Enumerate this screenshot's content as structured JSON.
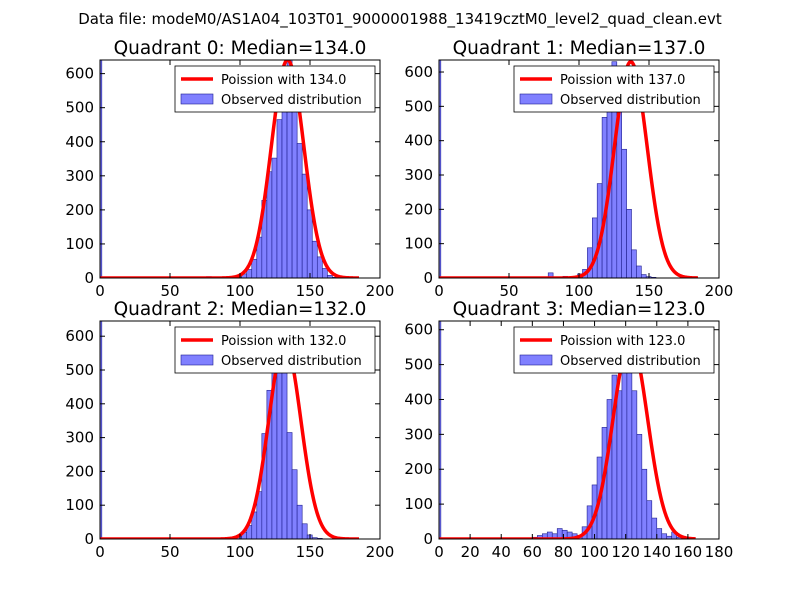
{
  "suptitle": "Data file: modeM0/AS1A04_103T01_9000001988_13419cztM0_level2_quad_clean.evt",
  "colors": {
    "bar_fill": "#8080ff",
    "bar_edge": "#1f1f8f",
    "curve": "#ff0000"
  },
  "chart_data": [
    {
      "type": "bar",
      "title": "Quadrant 0: Median=134.0",
      "xlim": [
        0,
        200
      ],
      "ylim": [
        0,
        640
      ],
      "xticks": [
        0,
        50,
        100,
        150,
        200
      ],
      "yticks": [
        0,
        100,
        200,
        300,
        400,
        500,
        600
      ],
      "legend": {
        "position": "top-right",
        "curve_label": "Poission with 134.0",
        "bar_label": "Observed distribution"
      },
      "spike": {
        "x": [
          0,
          1.3
        ],
        "value": 640
      },
      "hist": {
        "start": 76,
        "bin_width": 3.6,
        "values": [
          4,
          0,
          3,
          0,
          0,
          5,
          3,
          12,
          25,
          55,
          120,
          228,
          312,
          352,
          465,
          560,
          640,
          540,
          395,
          305,
          200,
          108,
          62,
          28,
          8,
          2,
          0
        ]
      },
      "poisson_mean": 134.0
    },
    {
      "type": "bar",
      "title": "Quadrant 1: Median=137.0",
      "xlim": [
        0,
        200
      ],
      "ylim": [
        0,
        635
      ],
      "xticks": [
        0,
        50,
        100,
        150,
        200
      ],
      "yticks": [
        0,
        100,
        200,
        300,
        400,
        500,
        600
      ],
      "legend": {
        "position": "top-right",
        "curve_label": "Poission with 137.0",
        "bar_label": "Observed distribution"
      },
      "spike": {
        "x": [
          0,
          1.3
        ],
        "value": 635
      },
      "hist": {
        "start": 78,
        "bin_width": 3.5,
        "values": [
          15,
          0,
          0,
          5,
          0,
          5,
          12,
          25,
          88,
          175,
          275,
          468,
          520,
          630,
          515,
          375,
          200,
          82,
          35,
          10,
          4,
          2,
          0,
          0
        ]
      },
      "poisson_mean": 137.0
    },
    {
      "type": "bar",
      "title": "Quadrant 2: Median=132.0",
      "xlim": [
        0,
        200
      ],
      "ylim": [
        0,
        645
      ],
      "xticks": [
        0,
        50,
        100,
        150,
        200
      ],
      "yticks": [
        0,
        100,
        200,
        300,
        400,
        500,
        600
      ],
      "legend": {
        "position": "top-right",
        "curve_label": "Poission with 132.0",
        "bar_label": "Observed distribution"
      },
      "spike": {
        "x": [
          0,
          1.3
        ],
        "value": 645
      },
      "hist": {
        "start": 76,
        "bin_width": 3.6,
        "values": [
          3,
          0,
          0,
          0,
          2,
          4,
          8,
          20,
          40,
          80,
          140,
          312,
          440,
          525,
          580,
          510,
          315,
          205,
          100,
          45,
          12,
          4,
          2,
          0,
          0,
          0,
          0
        ]
      },
      "poisson_mean": 132.0
    },
    {
      "type": "bar",
      "title": "Quadrant 3: Median=123.0",
      "xlim": [
        0,
        180
      ],
      "ylim": [
        0,
        625
      ],
      "xticks": [
        0,
        20,
        40,
        60,
        80,
        100,
        120,
        140,
        160,
        180
      ],
      "yticks": [
        0,
        100,
        200,
        300,
        400,
        500,
        600
      ],
      "legend": {
        "position": "top-right",
        "curve_label": "Poission with 123.0",
        "bar_label": "Observed distribution"
      },
      "spike": {
        "x": [
          0,
          1.2
        ],
        "value": 625
      },
      "hist": {
        "start": 60,
        "bin_width": 3.2,
        "values": [
          5,
          10,
          15,
          20,
          15,
          30,
          25,
          20,
          15,
          10,
          35,
          95,
          155,
          235,
          320,
          400,
          470,
          425,
          520,
          570,
          425,
          300,
          200,
          110,
          60,
          30,
          15,
          8,
          20,
          5,
          0
        ]
      },
      "poisson_mean": 123.0
    }
  ]
}
